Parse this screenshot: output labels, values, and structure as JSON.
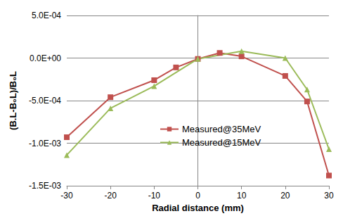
{
  "chart_data": {
    "type": "line",
    "x_label": "Radial distance (mm)",
    "y_label": "(B.L-B₀L)/B₀L",
    "xlim": [
      -30,
      30
    ],
    "xticks": [
      -30,
      -20,
      -10,
      0,
      10,
      20,
      30
    ],
    "ylim": [
      -0.0015,
      0.0005
    ],
    "yticks": [
      {
        "value": -0.0015,
        "label": "-1.5E-03"
      },
      {
        "value": -0.001,
        "label": "-1.0E-03"
      },
      {
        "value": -0.0005,
        "label": "-5.0E-04"
      },
      {
        "value": 0,
        "label": "0.0E+00"
      },
      {
        "value": 0.0005,
        "label": "5.0E-04"
      }
    ],
    "grid": true,
    "legend": "center",
    "series": [
      {
        "name": "Measured@35MeV",
        "color": "#c0504d",
        "marker": "square",
        "x": [
          -30,
          -20,
          -10,
          -5,
          0,
          5,
          10,
          20,
          25,
          30
        ],
        "values": [
          -0.00093,
          -0.00046,
          -0.00026,
          -0.00011,
          -1e-05,
          6e-05,
          2e-05,
          -0.00021,
          -0.00051,
          -0.00138
        ]
      },
      {
        "name": "Measured@15MeV",
        "color": "#9bbb59",
        "marker": "triangle",
        "x": [
          -30,
          -20,
          -10,
          0,
          10,
          20,
          25,
          30
        ],
        "values": [
          -0.00114,
          -0.00059,
          -0.00033,
          -1e-05,
          8e-05,
          0.0,
          -0.00037,
          -0.00107
        ]
      }
    ]
  }
}
